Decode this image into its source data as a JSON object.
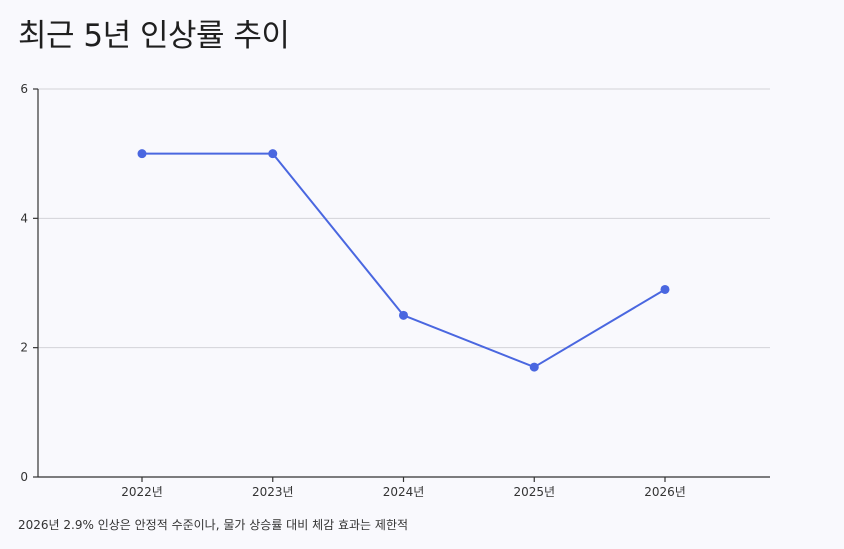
{
  "title": "최근 5년 인상률 추이",
  "caption": "2026년 2.9% 인상은 안정적 수준이나, 물가 상승률 대비 체감 효과는 제한적",
  "colors": {
    "line": "#4a67e0",
    "point": "#4a67e0",
    "axis": "#333333",
    "grid": "#d3d3d8"
  },
  "chart_data": {
    "type": "line",
    "categories": [
      "2022년",
      "2023년",
      "2024년",
      "2025년",
      "2026년"
    ],
    "series": [
      {
        "values": [
          5.0,
          5.0,
          2.5,
          1.7,
          2.9
        ]
      }
    ],
    "ylim": [
      0,
      6
    ],
    "yticks": [
      0,
      2,
      4,
      6
    ],
    "ytick_labels": [
      "0",
      "2",
      "4",
      "6"
    ],
    "grid": true,
    "xlabel": "",
    "ylabel": ""
  }
}
